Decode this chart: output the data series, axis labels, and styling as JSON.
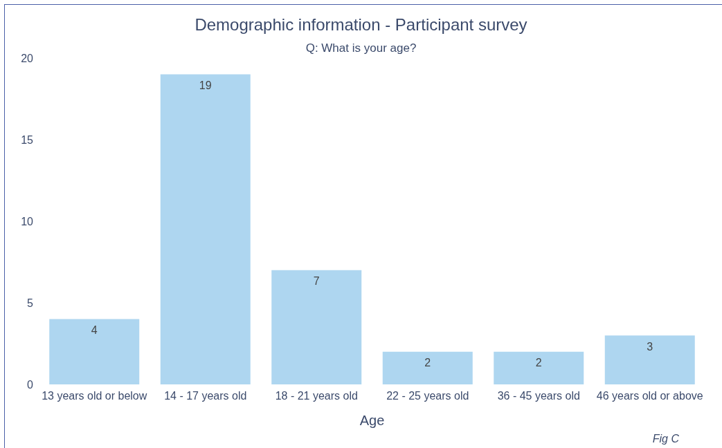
{
  "chart_data": {
    "type": "bar",
    "title": "Demographic information - Participant survey",
    "subtitle": "Q: What is your age?",
    "xlabel": "Age",
    "categories": [
      "13 years old or below",
      "14 - 17 years old",
      "18 - 21 years old",
      "22 - 25 years old",
      "36 - 45 years old",
      "46 years old or above"
    ],
    "values": [
      4,
      19,
      7,
      2,
      2,
      3
    ],
    "color": "#aed6f0",
    "ylim": [
      0,
      20
    ],
    "yticks": [
      0,
      5,
      10,
      15,
      20
    ],
    "grid": false,
    "data_labels": true,
    "annotations": [
      "Fig C"
    ]
  }
}
